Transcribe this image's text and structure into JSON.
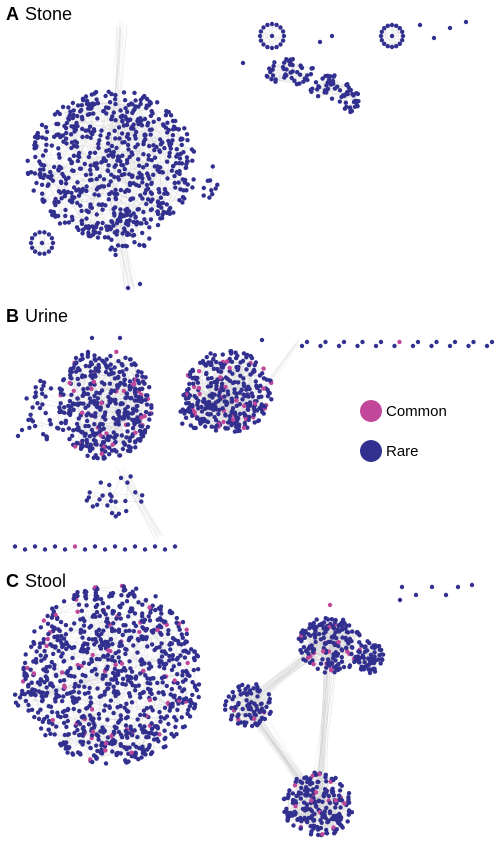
{
  "panels": [
    {
      "letter": "A",
      "title": "Stone"
    },
    {
      "letter": "B",
      "title": "Urine"
    },
    {
      "letter": "C",
      "title": "Stool"
    }
  ],
  "legend": [
    {
      "label": "Common",
      "color": "#c0479a"
    },
    {
      "label": "Rare",
      "color": "#32308f"
    }
  ],
  "colors": {
    "rare": "#32308f",
    "common": "#c0479a",
    "edge": "#cccccc"
  }
}
